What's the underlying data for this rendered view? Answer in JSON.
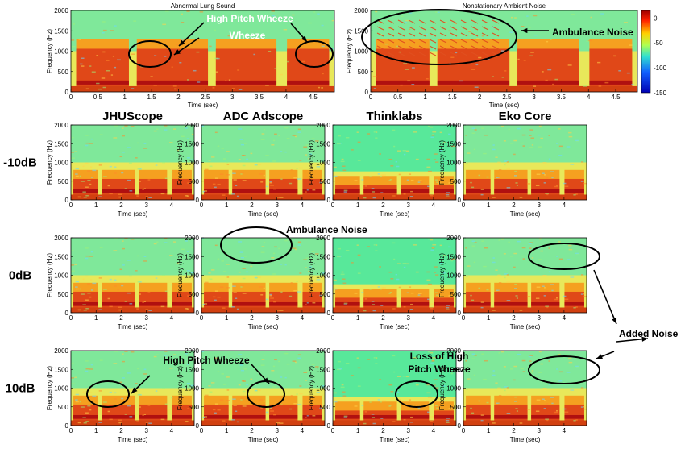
{
  "chart_data": {
    "type": "heatmap",
    "top_panels": [
      {
        "title": "Abnormal Lung Sound",
        "xlabel": "Time (sec)",
        "ylabel": "Frequency (Hz)",
        "xlim": [
          0,
          4.9
        ],
        "ylim": [
          0,
          2000
        ],
        "xticks": [
          "0",
          "0.5",
          "1",
          "1.5",
          "2",
          "2.5",
          "3",
          "3.5",
          "4",
          "4.5"
        ],
        "yticks": [
          "0",
          "500",
          "1000",
          "1500",
          "2000"
        ]
      },
      {
        "title": "Nonstationary Ambient Noise",
        "xlabel": "Time (sec)",
        "ylabel": "Frequency (Hz)",
        "xlim": [
          0,
          4.9
        ],
        "ylim": [
          0,
          2000
        ],
        "xticks": [
          "0",
          "0.5",
          "1",
          "1.5",
          "2",
          "2.5",
          "3",
          "3.5",
          "4",
          "4.5"
        ],
        "yticks": [
          "0",
          "500",
          "1000",
          "1500",
          "2000"
        ]
      }
    ],
    "colorbar": {
      "ticks": [
        "0",
        "-50",
        "-100",
        "-150"
      ],
      "range": [
        -150,
        15
      ]
    },
    "column_titles": [
      "JHUScope",
      "ADC Adscope",
      "Thinklabs",
      "Eko Core"
    ],
    "row_labels": [
      "-10dB",
      "0dB",
      "10dB"
    ],
    "grid_panels": {
      "xlabel": "Time (sec)",
      "ylabel": "Frequency (Hz)",
      "xlim": [
        0,
        4.9
      ],
      "ylim": [
        0,
        2000
      ],
      "xticks": [
        "0",
        "1",
        "2",
        "3",
        "4"
      ],
      "yticks": [
        "0",
        "500",
        "1000",
        "1500",
        "2000"
      ]
    },
    "annotations": {
      "high_pitch_wheeze": "High Pitch Wheeze",
      "wheeze": "Wheeze",
      "ambulance_noise": "Ambulance Noise",
      "added_noise": "Added Noise",
      "loss_high_pitch": "Loss of High Pitch Wheeze"
    }
  },
  "colors": {
    "background": "#ffffff",
    "low": "#0000b4",
    "high": "#a00000"
  }
}
